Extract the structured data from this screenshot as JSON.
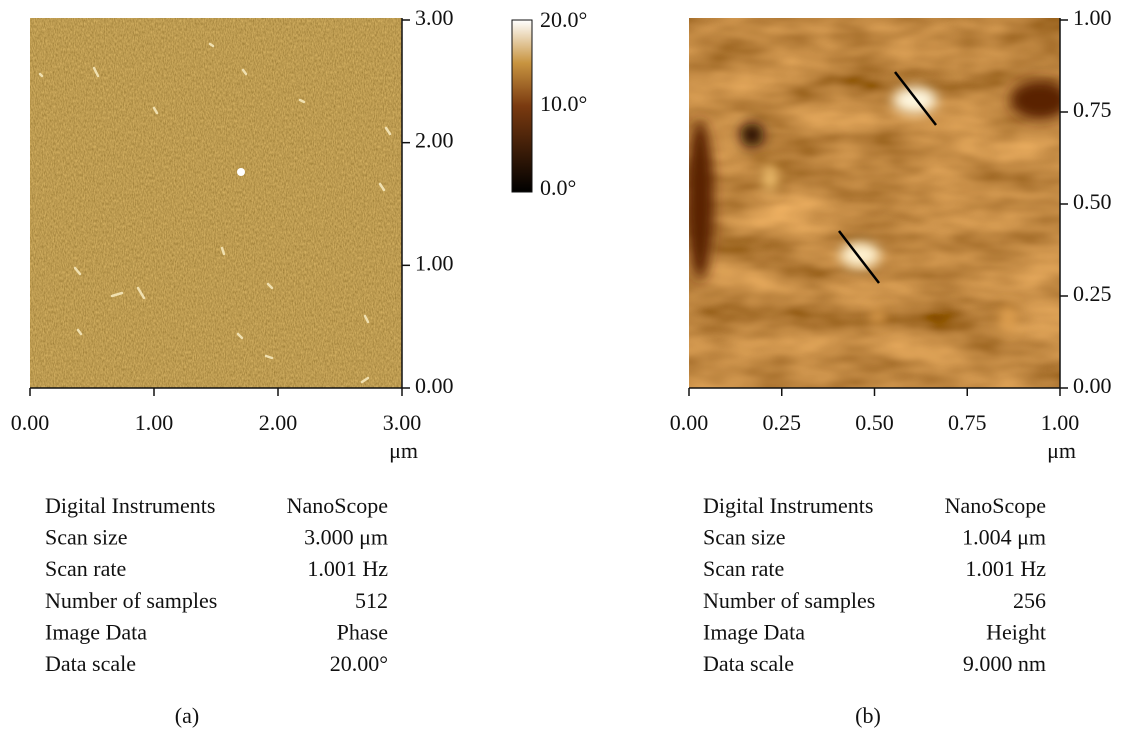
{
  "panels": [
    {
      "y_ticks": [
        "0.00",
        "1.00",
        "2.00",
        "3.00"
      ],
      "x_ticks": [
        "0.00",
        "1.00",
        "2.00",
        "3.00"
      ],
      "x_unit": "μm",
      "colorbar": [
        "20.0°",
        "10.0°",
        "0.0°"
      ],
      "info": [
        [
          "Digital Instruments",
          "NanoScope"
        ],
        [
          "Scan size",
          "3.000 μm"
        ],
        [
          "Scan rate",
          "1.001 Hz"
        ],
        [
          "Number of samples",
          "512"
        ],
        [
          "Image Data",
          "Phase"
        ],
        [
          "Data scale",
          "20.00°"
        ]
      ],
      "caption": "(a)"
    },
    {
      "y_ticks": [
        "0.00",
        "0.25",
        "0.50",
        "0.75",
        "1.00"
      ],
      "x_ticks": [
        "0.00",
        "0.25",
        "0.50",
        "0.75",
        "1.00"
      ],
      "x_unit": "μm",
      "info": [
        [
          "Digital Instruments",
          "NanoScope"
        ],
        [
          "Scan size",
          "1.004 μm"
        ],
        [
          "Scan rate",
          "1.001 Hz"
        ],
        [
          "Number of samples",
          "256"
        ],
        [
          "Image Data",
          "Height"
        ],
        [
          "Data scale",
          "9.000 nm"
        ]
      ],
      "caption": "(b)"
    }
  ]
}
